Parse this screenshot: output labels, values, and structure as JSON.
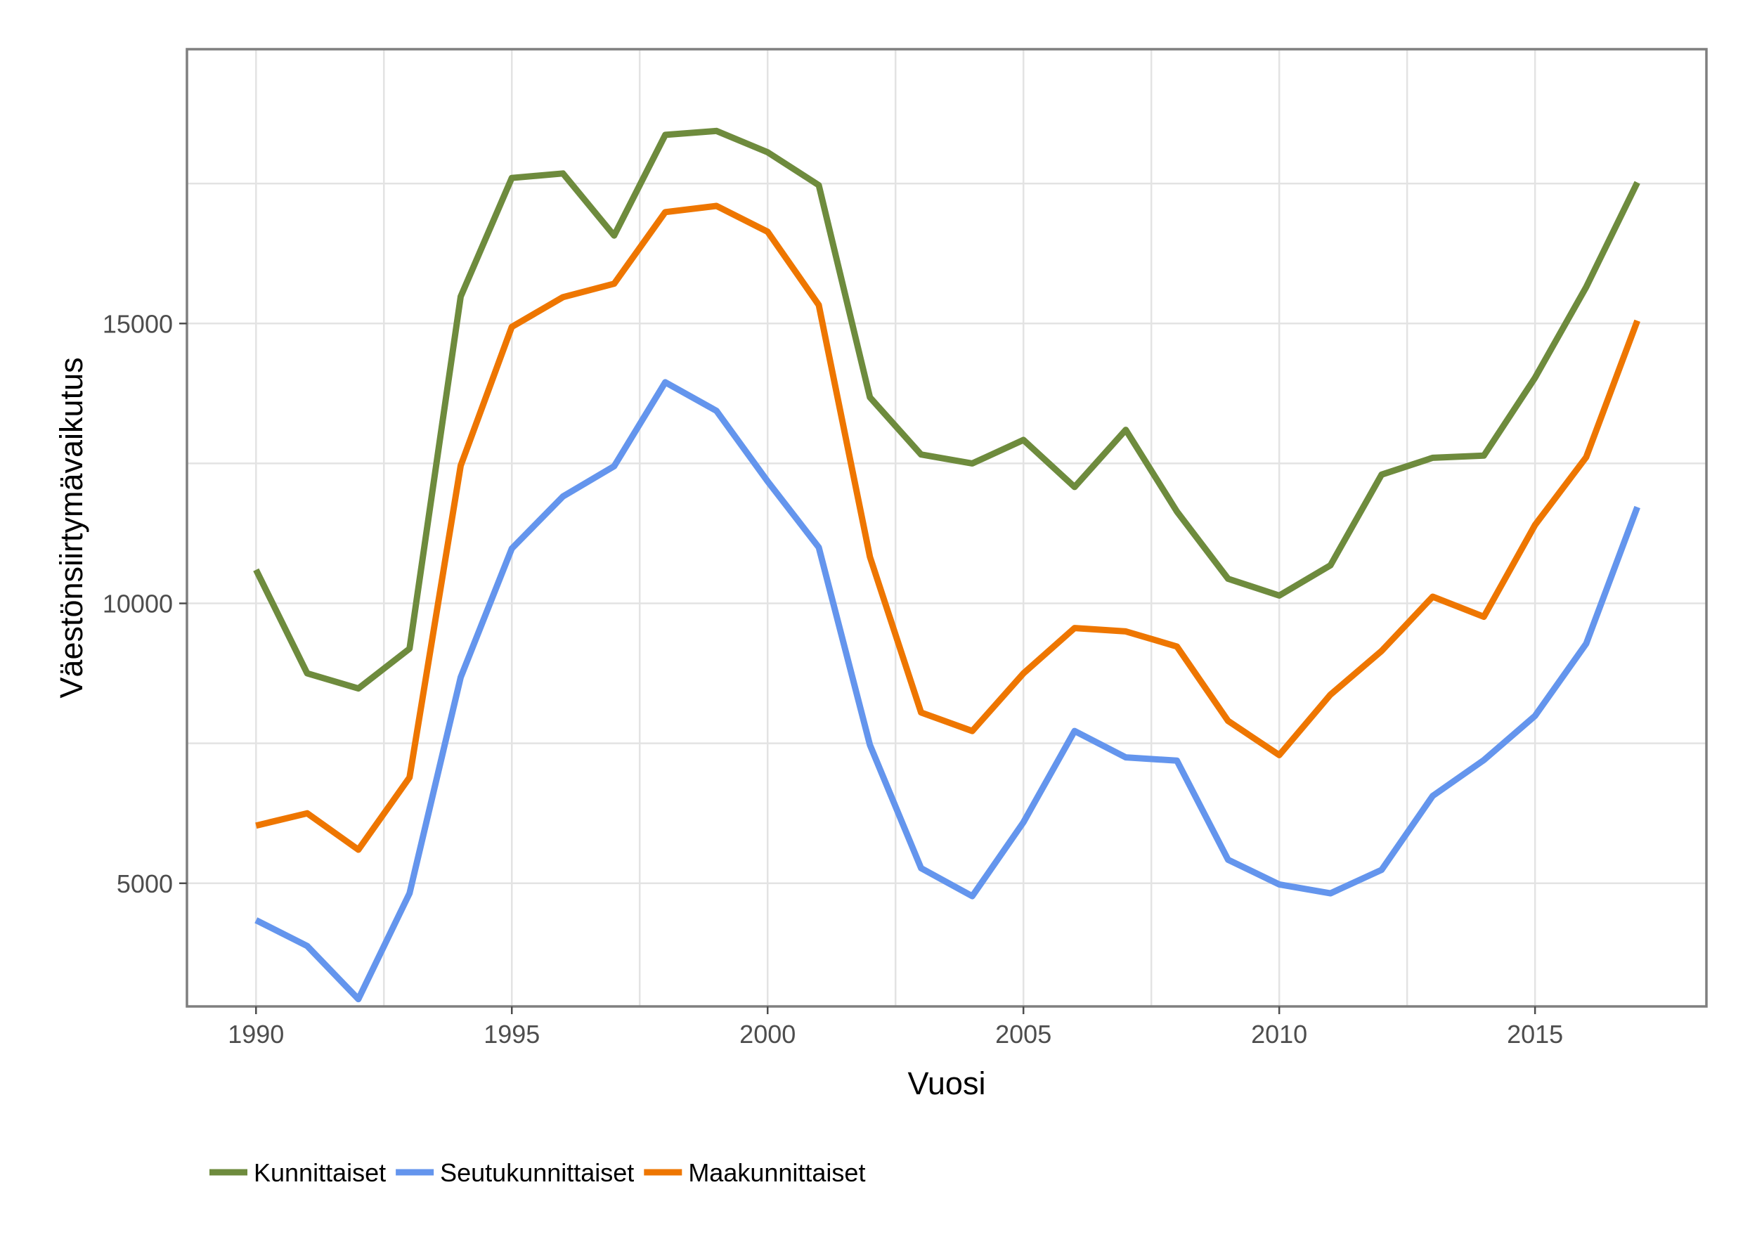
{
  "chart_data": {
    "type": "line",
    "title": "",
    "xlabel": "Vuosi",
    "ylabel": "Väestönsiirtymävaikutus",
    "xlim": [
      1988.65,
      2018.35
    ],
    "ylim": [
      2800,
      19900
    ],
    "x_ticks": [
      1990,
      1995,
      2000,
      2005,
      2010,
      2015
    ],
    "x_tick_labels": [
      "1990",
      "1995",
      "2000",
      "2005",
      "2010",
      "2015"
    ],
    "y_ticks": [
      5000,
      10000,
      15000
    ],
    "y_tick_labels": [
      "5000",
      "10000",
      "15000"
    ],
    "grid": true,
    "legend_position": "bottom-left",
    "x": [
      1990,
      1991,
      1992,
      1993,
      1994,
      1995,
      1996,
      1997,
      1998,
      1999,
      2000,
      2001,
      2002,
      2003,
      2004,
      2005,
      2006,
      2007,
      2008,
      2009,
      2010,
      2011,
      2012,
      2013,
      2014,
      2015,
      2016,
      2017
    ],
    "series": [
      {
        "name": "Kunnittaiset",
        "color": "#6e8b3d",
        "values": [
          10600,
          8750,
          8480,
          9190,
          15480,
          17600,
          17680,
          16570,
          18370,
          18440,
          18060,
          17470,
          13680,
          12660,
          12500,
          12920,
          12080,
          13100,
          11640,
          10440,
          10140,
          10680,
          12300,
          12600,
          12640,
          14030,
          15650,
          17520
        ]
      },
      {
        "name": "Seutukunnittaiset",
        "color": "#6495ed",
        "values": [
          4340,
          3880,
          2930,
          4820,
          8680,
          10980,
          11910,
          12450,
          13950,
          13440,
          12180,
          11000,
          7470,
          5270,
          4770,
          6090,
          7720,
          7250,
          7190,
          5420,
          4980,
          4820,
          5240,
          6560,
          7200,
          7990,
          9280,
          11720
        ]
      },
      {
        "name": "Maakunnittaiset",
        "color": "#ee7600",
        "values": [
          6030,
          6250,
          5600,
          6890,
          12460,
          14940,
          15470,
          15710,
          16990,
          17100,
          16640,
          15330,
          10830,
          8050,
          7720,
          8750,
          9560,
          9500,
          9230,
          7900,
          7290,
          8370,
          9150,
          10120,
          9760,
          11400,
          12610,
          15050
        ]
      }
    ]
  }
}
